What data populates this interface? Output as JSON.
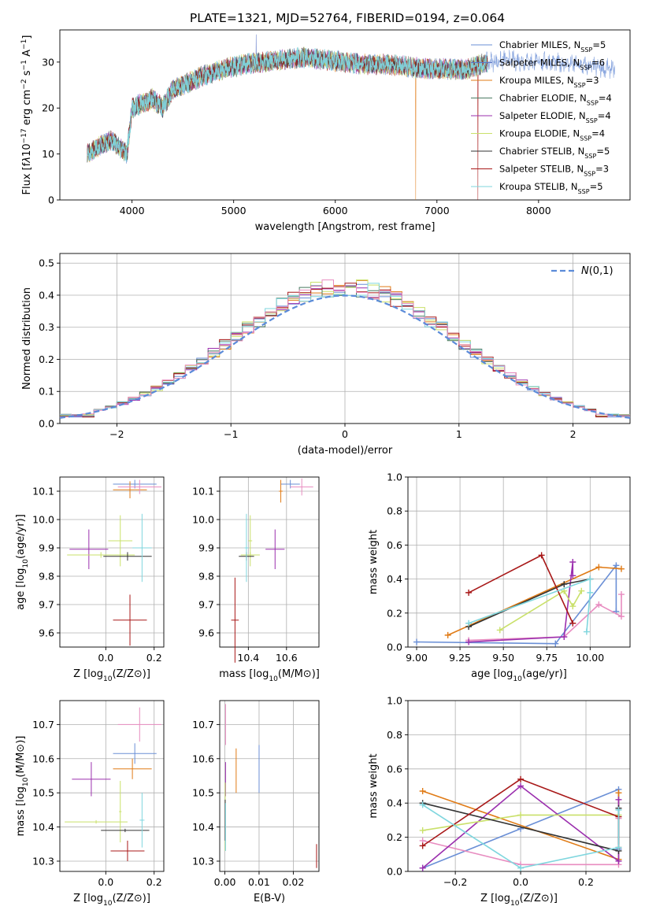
{
  "figure": {
    "title": "PLATE=1321, MJD=52764, FIBERID=0194, z=0.064"
  },
  "colors": [
    "#6a8fd6",
    "#9b2fae",
    "#e07b16",
    "#5a5a5a",
    "#9b2fae",
    "#c9e06a",
    "#333333",
    "#a81818",
    "#7fd6de"
  ],
  "chart_data": [
    {
      "id": "spectrum",
      "type": "line",
      "xlabel": "wavelength [Angstrom, rest frame]",
      "ylabel": "Flux [f$_\\lambda$10$^{-17}$ erg cm$^{-2}$ s$^{-1}$ A$^{-1}$]",
      "xlim": [
        3290,
        8900
      ],
      "ylim": [
        0,
        37
      ],
      "xticks": [
        4000,
        5000,
        6000,
        7000,
        8000
      ],
      "yticks": [
        0,
        10,
        20,
        30
      ],
      "grid": false,
      "legend_position": "upper-right",
      "series": [
        {
          "name": "Chabrier MILES, N$_{SSP}$=5",
          "color": "#6a8fd6"
        },
        {
          "name": "Salpeter MILES, N$_{SSP}$=6",
          "color": "#5b76c7"
        },
        {
          "name": "Kroupa MILES, N$_{SSP}$=3",
          "color": "#e07b16"
        },
        {
          "name": "Chabrier ELODIE, N$_{SSP}$=4",
          "color": "#4a7a62"
        },
        {
          "name": "Salpeter ELODIE, N$_{SSP}$=4",
          "color": "#9b2fae"
        },
        {
          "name": "Kroupa ELODIE, N$_{SSP}$=4",
          "color": "#c9e06a"
        },
        {
          "name": "Chabrier STELIB, N$_{SSP}$=5",
          "color": "#333333"
        },
        {
          "name": "Salpeter STELIB, N$_{SSP}$=3",
          "color": "#a81818"
        },
        {
          "name": "Kroupa STELIB, N$_{SSP}$=5",
          "color": "#7fd6de"
        }
      ],
      "continuum": {
        "x": [
          3550,
          3700,
          3800,
          3900,
          3950,
          4000,
          4100,
          4200,
          4300,
          4400,
          4500,
          4700,
          4900,
          5100,
          5300,
          5500,
          5700,
          5900,
          6100,
          6300,
          6500,
          6700,
          6900,
          7100,
          7300,
          7500,
          7700,
          7900,
          8100,
          8300,
          8500,
          8700
        ],
        "y": [
          10,
          12,
          13,
          11,
          10,
          20,
          21,
          22,
          20,
          24,
          25,
          27,
          28.5,
          29.5,
          30,
          30.5,
          31,
          30.5,
          30,
          29.5,
          29.5,
          29,
          28.5,
          28.5,
          28.5,
          30,
          30.5,
          30,
          30,
          29.5,
          29,
          28.5
        ]
      }
    },
    {
      "id": "residuals",
      "type": "line",
      "xlabel": "(data-model)/error",
      "ylabel": "Normed distribution",
      "xlim": [
        -2.5,
        2.5
      ],
      "ylim": [
        0,
        0.53
      ],
      "xticks": [
        -2,
        -1,
        0,
        1,
        2
      ],
      "xtick_labels": [
        "−2",
        "−1",
        "0",
        "1",
        "2"
      ],
      "yticks": [
        0,
        0.1,
        0.2,
        0.3,
        0.4,
        0.5
      ],
      "ytick_labels": [
        "0.0",
        "0.1",
        "0.2",
        "0.3",
        "0.4",
        "0.5"
      ],
      "grid": true,
      "legend_position": "upper-right",
      "legend_label": "$\\mathcal{N}(0,1)$",
      "bin_edges_from": -2.5,
      "bin_width": 0.1
    },
    {
      "id": "age-vs-Z",
      "type": "scatter",
      "xlabel": "Z [log$_{10}$($Z/Z_\\odot$)]",
      "ylabel": "age  [log$_{10}$($age/yr$)]",
      "xlim": [
        -0.19,
        0.24
      ],
      "ylim": [
        9.55,
        10.15
      ],
      "xticks": [
        0.0,
        0.2
      ],
      "xtick_labels": [
        "0.0",
        "0.2"
      ],
      "yticks": [
        9.6,
        9.7,
        9.8,
        9.9,
        10.0,
        10.1
      ],
      "ytick_labels": [
        "9.6",
        "9.7",
        "9.8",
        "9.9",
        "10.0",
        "10.1"
      ],
      "grid": true,
      "points": [
        {
          "x": 0.12,
          "y": 10.125,
          "xerr": 0.09,
          "yerr": 0.015,
          "color": "#6a8fd6"
        },
        {
          "x": 0.1,
          "y": 10.105,
          "xerr": 0.07,
          "yerr": 0.03,
          "color": "#e07b16"
        },
        {
          "x": 0.14,
          "y": 10.115,
          "xerr": 0.09,
          "yerr": 0.025,
          "color": "#e88cc0"
        },
        {
          "x": -0.07,
          "y": 9.895,
          "xerr": 0.08,
          "yerr": 0.07,
          "color": "#9b2fae"
        },
        {
          "x": 0.06,
          "y": 9.925,
          "xerr": 0.05,
          "yerr": 0.09,
          "color": "#c9e06a"
        },
        {
          "x": -0.02,
          "y": 9.875,
          "xerr": 0.14,
          "yerr": 0.01,
          "color": "#c9e06a"
        },
        {
          "x": 0.09,
          "y": 9.87,
          "xerr": 0.1,
          "yerr": 0.015,
          "color": "#333333"
        },
        {
          "x": 0.15,
          "y": 9.9,
          "xerr": 0.04,
          "yerr": 0.12,
          "color": "#7fd6de"
        },
        {
          "x": 0.1,
          "y": 9.645,
          "xerr": 0.07,
          "yerr": 0.09,
          "color": "#a81818"
        }
      ]
    },
    {
      "id": "age-vs-mass",
      "type": "scatter",
      "xlabel": "mass [log$_{10}$($M/M_\\odot$)]",
      "ylabel": "",
      "xlim": [
        10.25,
        10.77
      ],
      "ylim": [
        9.55,
        10.15
      ],
      "xticks": [
        10.4,
        10.6
      ],
      "xtick_labels": [
        "10.4",
        "10.6"
      ],
      "yticks": [
        9.6,
        9.7,
        9.8,
        9.9,
        10.0,
        10.1
      ],
      "ytick_labels": [
        "9.6",
        "9.7",
        "9.8",
        "9.9",
        "10.0",
        "10.1"
      ],
      "grid": true,
      "points": [
        {
          "x": 10.62,
          "y": 10.125,
          "xerr": 0.05,
          "yerr": 0.015,
          "color": "#6a8fd6"
        },
        {
          "x": 10.57,
          "y": 10.1,
          "xerr": 0.01,
          "yerr": 0.04,
          "color": "#e07b16"
        },
        {
          "x": 10.68,
          "y": 10.115,
          "xerr": 0.06,
          "yerr": 0.03,
          "color": "#e88cc0"
        },
        {
          "x": 10.54,
          "y": 9.895,
          "xerr": 0.05,
          "yerr": 0.07,
          "color": "#9b2fae"
        },
        {
          "x": 10.41,
          "y": 9.925,
          "xerr": 0.01,
          "yerr": 0.09,
          "color": "#c9e06a"
        },
        {
          "x": 10.41,
          "y": 9.875,
          "xerr": 0.05,
          "yerr": 0.01,
          "color": "#c9e06a"
        },
        {
          "x": 10.39,
          "y": 9.87,
          "xerr": 0.04,
          "yerr": 0.015,
          "color": "#333333"
        },
        {
          "x": 10.39,
          "y": 9.9,
          "xerr": 0.01,
          "yerr": 0.12,
          "color": "#7fd6de"
        },
        {
          "x": 10.33,
          "y": 9.645,
          "xerr": 0.02,
          "yerr": 0.15,
          "color": "#a81818"
        }
      ]
    },
    {
      "id": "mass-weight-vs-age",
      "type": "line",
      "xlabel": "age  [log$_{10}$($age/yr$)]",
      "ylabel": "mass weight",
      "xlim": [
        8.95,
        10.23
      ],
      "ylim": [
        0,
        1.0
      ],
      "xticks": [
        9.0,
        9.25,
        9.5,
        9.75,
        10.0
      ],
      "xtick_labels": [
        "9.00",
        "9.25",
        "9.50",
        "9.75",
        "10.00"
      ],
      "yticks": [
        0,
        0.2,
        0.4,
        0.6,
        0.8,
        1.0
      ],
      "ytick_labels": [
        "0.0",
        "0.2",
        "0.4",
        "0.6",
        "0.8",
        "1.0"
      ],
      "grid": true,
      "series": [
        {
          "color": "#6a8fd6",
          "x": [
            9.0,
            9.8,
            10.15,
            10.15
          ],
          "y": [
            0.03,
            0.02,
            0.48,
            0.21
          ]
        },
        {
          "color": "#e07b16",
          "x": [
            9.18,
            10.05,
            10.18
          ],
          "y": [
            0.07,
            0.47,
            0.46
          ]
        },
        {
          "color": "#e88cc0",
          "x": [
            9.3,
            9.85,
            10.05,
            10.18,
            10.18
          ],
          "y": [
            0.04,
            0.06,
            0.25,
            0.18,
            0.31
          ]
        },
        {
          "color": "#9b2fae",
          "x": [
            9.3,
            9.85,
            9.9,
            9.9
          ],
          "y": [
            0.03,
            0.06,
            0.5,
            0.42
          ]
        },
        {
          "color": "#c9e06a",
          "x": [
            9.48,
            9.85,
            9.9,
            9.95
          ],
          "y": [
            0.1,
            0.33,
            0.24,
            0.33
          ]
        },
        {
          "color": "#333333",
          "x": [
            9.3,
            9.85,
            10.0
          ],
          "y": [
            0.12,
            0.37,
            0.4
          ]
        },
        {
          "color": "#a81818",
          "x": [
            9.3,
            9.72,
            9.9
          ],
          "y": [
            0.32,
            0.54,
            0.14
          ]
        },
        {
          "color": "#7fd6de",
          "x": [
            9.3,
            10.0,
            10.0,
            9.98
          ],
          "y": [
            0.14,
            0.4,
            0.32,
            0.09
          ]
        }
      ]
    },
    {
      "id": "mass-vs-Z",
      "type": "scatter",
      "xlabel": "Z [log$_{10}$($Z/Z_\\odot$)]",
      "ylabel": "mass [log$_{10}$($M/M_\\odot$)]",
      "xlim": [
        -0.19,
        0.24
      ],
      "ylim": [
        10.27,
        10.77
      ],
      "xticks": [
        0.0,
        0.2
      ],
      "xtick_labels": [
        "0.0",
        "0.2"
      ],
      "yticks": [
        10.3,
        10.4,
        10.5,
        10.6,
        10.7
      ],
      "ytick_labels": [
        "10.3",
        "10.4",
        "10.5",
        "10.6",
        "10.7"
      ],
      "grid": true,
      "points": [
        {
          "x": 0.12,
          "y": 10.615,
          "xerr": 0.09,
          "yerr": 0.03,
          "color": "#6a8fd6"
        },
        {
          "x": 0.11,
          "y": 10.57,
          "xerr": 0.08,
          "yerr": 0.03,
          "color": "#e07b16"
        },
        {
          "x": 0.14,
          "y": 10.7,
          "xerr": 0.09,
          "yerr": 0.05,
          "color": "#e88cc0"
        },
        {
          "x": -0.06,
          "y": 10.54,
          "xerr": 0.08,
          "yerr": 0.05,
          "color": "#9b2fae"
        },
        {
          "x": 0.06,
          "y": 10.445,
          "xerr": 0.005,
          "yerr": 0.09,
          "color": "#c9e06a"
        },
        {
          "x": -0.04,
          "y": 10.415,
          "xerr": 0.13,
          "yerr": 0.005,
          "color": "#c9e06a"
        },
        {
          "x": 0.08,
          "y": 10.39,
          "xerr": 0.1,
          "yerr": 0.005,
          "color": "#333333"
        },
        {
          "x": 0.15,
          "y": 10.42,
          "xerr": 0.01,
          "yerr": 0.08,
          "color": "#7fd6de"
        },
        {
          "x": 0.09,
          "y": 10.33,
          "xerr": 0.07,
          "yerr": 0.03,
          "color": "#a81818"
        }
      ]
    },
    {
      "id": "mass-vs-EBV",
      "type": "scatter",
      "xlabel": "E(B-V)",
      "ylabel": "",
      "xlim": [
        -0.0015,
        0.0275
      ],
      "ylim": [
        10.27,
        10.77
      ],
      "xticks": [
        0.0,
        0.01,
        0.02
      ],
      "xtick_labels": [
        "0.00",
        "0.01",
        "0.02"
      ],
      "yticks": [
        10.3,
        10.4,
        10.5,
        10.6,
        10.7
      ],
      "ytick_labels": [
        "10.3",
        "10.4",
        "10.5",
        "10.6",
        "10.7"
      ],
      "grid": true,
      "points": [
        {
          "x": 0.01,
          "y": 10.57,
          "xerr": 0,
          "yerr": 0.07,
          "color": "#6a8fd6"
        },
        {
          "x": 0.0033,
          "y": 10.565,
          "xerr": 0,
          "yerr": 0.065,
          "color": "#e07b16"
        },
        {
          "x": 0.0002,
          "y": 10.7,
          "xerr": 0,
          "yerr": 0.06,
          "color": "#e88cc0"
        },
        {
          "x": 0.0002,
          "y": 10.54,
          "xerr": 0,
          "yerr": 0.05,
          "color": "#9b2fae"
        },
        {
          "x": 0.0001,
          "y": 10.43,
          "xerr": 0,
          "yerr": 0.1,
          "color": "#c9e06a"
        },
        {
          "x": 0.0001,
          "y": 10.42,
          "xerr": 0,
          "yerr": 0.06,
          "color": "#333333"
        },
        {
          "x": 0.0002,
          "y": 10.4,
          "xerr": 0,
          "yerr": 0.07,
          "color": "#7fd6de"
        },
        {
          "x": 0.0268,
          "y": 10.315,
          "xerr": 0,
          "yerr": 0.035,
          "color": "#a81818"
        }
      ]
    },
    {
      "id": "mass-weight-vs-Z",
      "type": "line",
      "xlabel": "Z [log$_{10}$($Z/Z_\\odot$)]",
      "ylabel": "mass weight",
      "xlim": [
        -0.345,
        0.335
      ],
      "ylim": [
        0,
        1.0
      ],
      "xticks": [
        -0.2,
        0.0,
        0.2
      ],
      "xtick_labels": [
        "−0.2",
        "0.0",
        "0.2"
      ],
      "yticks": [
        0,
        0.2,
        0.4,
        0.6,
        0.8,
        1.0
      ],
      "ytick_labels": [
        "0.0",
        "0.2",
        "0.4",
        "0.6",
        "0.8",
        "1.0"
      ],
      "grid": true,
      "series": [
        {
          "color": "#6a8fd6",
          "x": [
            -0.3,
            0.0,
            0.3,
            0.3
          ],
          "y": [
            0.02,
            0.25,
            0.48,
            0.13
          ]
        },
        {
          "color": "#e07b16",
          "x": [
            -0.3,
            0.3,
            0.3
          ],
          "y": [
            0.47,
            0.07,
            0.46
          ]
        },
        {
          "color": "#e88cc0",
          "x": [
            -0.3,
            0.0,
            0.3,
            0.3
          ],
          "y": [
            0.18,
            0.04,
            0.04,
            0.31
          ]
        },
        {
          "color": "#9b2fae",
          "x": [
            -0.3,
            0.0,
            0.3,
            0.3
          ],
          "y": [
            0.02,
            0.5,
            0.06,
            0.42
          ]
        },
        {
          "color": "#c9e06a",
          "x": [
            -0.3,
            0.0,
            0.3
          ],
          "y": [
            0.24,
            0.33,
            0.33
          ]
        },
        {
          "color": "#333333",
          "x": [
            -0.3,
            0.3,
            0.3
          ],
          "y": [
            0.4,
            0.12,
            0.37
          ]
        },
        {
          "color": "#a81818",
          "x": [
            -0.3,
            0.0,
            0.3,
            0.3
          ],
          "y": [
            0.15,
            0.54,
            0.32,
            0.14
          ]
        },
        {
          "color": "#7fd6de",
          "x": [
            -0.3,
            0.0,
            0.3,
            0.3
          ],
          "y": [
            0.39,
            0.02,
            0.14,
            0.36
          ]
        }
      ]
    }
  ]
}
